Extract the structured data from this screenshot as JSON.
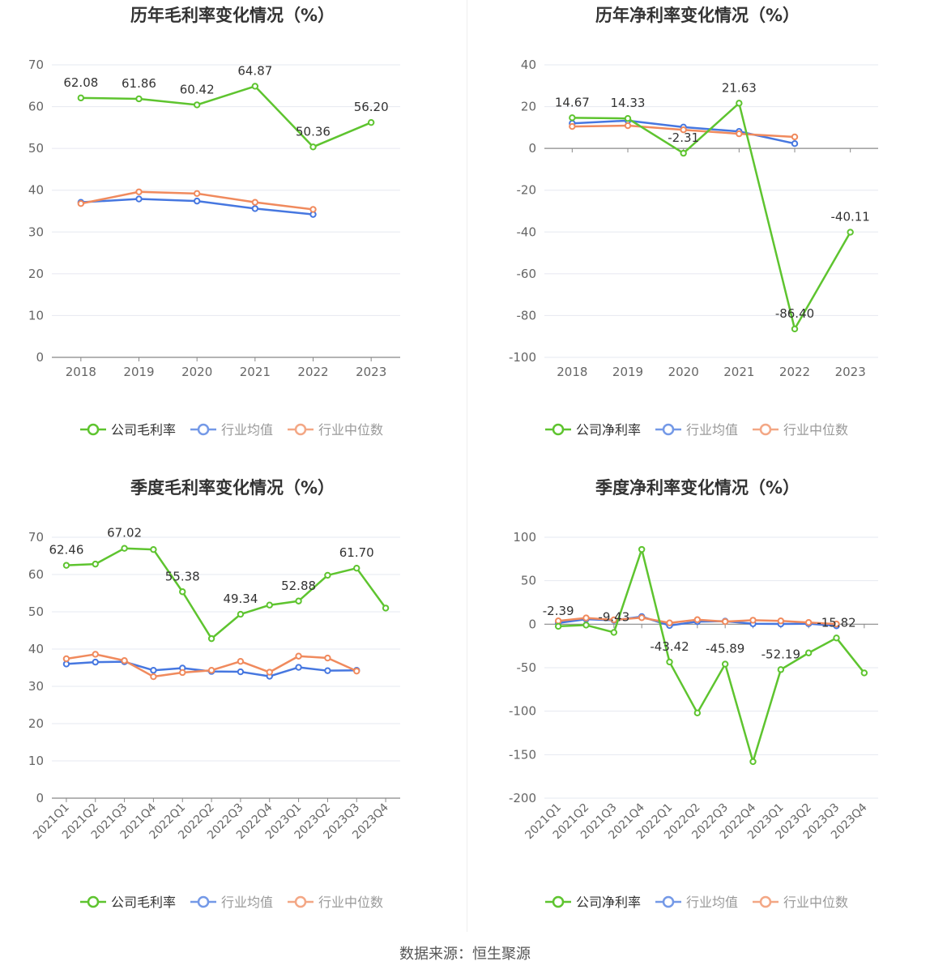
{
  "footer": {
    "source": "数据来源：恒生聚源"
  },
  "colors": {
    "company": "#5ec42f",
    "avg": "#4677e0",
    "median": "#f08a5d",
    "grid": "#e6e8f0",
    "axis": "#888888",
    "text": "#666666",
    "label": "#333333"
  },
  "chart_data": [
    {
      "id": "annual-gross",
      "type": "line",
      "title": "历年毛利率变化情况（%）",
      "categories": [
        "2018",
        "2019",
        "2020",
        "2021",
        "2022",
        "2023"
      ],
      "ylim": [
        0,
        70
      ],
      "yticks": [
        0,
        10,
        20,
        30,
        40,
        50,
        60,
        70
      ],
      "grid": true,
      "legend_position": "bottom",
      "series": [
        {
          "name": "公司毛利率",
          "role": "company",
          "values": [
            62.08,
            61.86,
            60.42,
            64.87,
            50.36,
            56.2
          ],
          "labels": [
            "62.08",
            "61.86",
            "60.42",
            "64.87",
            "50.36",
            "56.20"
          ]
        },
        {
          "name": "行业均值",
          "role": "avg",
          "values": [
            37.1,
            37.9,
            37.4,
            35.6,
            34.2,
            null
          ]
        },
        {
          "name": "行业中位数",
          "role": "median",
          "values": [
            36.8,
            39.6,
            39.2,
            37.1,
            35.4,
            null
          ]
        }
      ]
    },
    {
      "id": "annual-net",
      "type": "line",
      "title": "历年净利率变化情况（%）",
      "categories": [
        "2018",
        "2019",
        "2020",
        "2021",
        "2022",
        "2023"
      ],
      "ylim": [
        -100,
        40
      ],
      "yticks": [
        -100,
        -80,
        -60,
        -40,
        -20,
        0,
        20,
        40
      ],
      "grid": true,
      "legend_position": "bottom",
      "series": [
        {
          "name": "公司净利率",
          "role": "company",
          "values": [
            14.67,
            14.33,
            -2.31,
            21.63,
            -86.4,
            -40.11
          ],
          "labels": [
            "14.67",
            "14.33",
            "-2.31",
            "21.63",
            "-86.40",
            "-40.11"
          ]
        },
        {
          "name": "行业均值",
          "role": "avg",
          "values": [
            12.0,
            13.3,
            10.2,
            8.1,
            2.3,
            null
          ]
        },
        {
          "name": "行业中位数",
          "role": "median",
          "values": [
            10.5,
            10.9,
            8.9,
            7.0,
            5.5,
            null
          ]
        }
      ]
    },
    {
      "id": "quarterly-gross",
      "type": "line",
      "title": "季度毛利率变化情况（%）",
      "categories": [
        "2021Q1",
        "2021Q2",
        "2021Q3",
        "2021Q4",
        "2022Q1",
        "2022Q2",
        "2022Q3",
        "2022Q4",
        "2023Q1",
        "2023Q2",
        "2023Q3",
        "2023Q4"
      ],
      "ylim": [
        0,
        70
      ],
      "yticks": [
        0,
        10,
        20,
        30,
        40,
        50,
        60,
        70
      ],
      "grid": true,
      "legend_position": "bottom",
      "series": [
        {
          "name": "公司毛利率",
          "role": "company",
          "values": [
            62.46,
            62.8,
            67.02,
            66.7,
            55.38,
            42.8,
            49.34,
            51.8,
            52.88,
            59.8,
            61.7,
            51.0
          ],
          "labels": [
            "62.46",
            "",
            "67.02",
            "",
            "55.38",
            "",
            "49.34",
            "",
            "52.88",
            "",
            "61.70",
            ""
          ]
        },
        {
          "name": "行业均值",
          "role": "avg",
          "values": [
            36.0,
            36.5,
            36.6,
            34.3,
            34.9,
            34.0,
            33.9,
            32.7,
            35.1,
            34.2,
            34.3,
            null
          ]
        },
        {
          "name": "行业中位数",
          "role": "median",
          "values": [
            37.4,
            38.6,
            36.9,
            32.6,
            33.7,
            34.3,
            36.7,
            33.8,
            38.1,
            37.6,
            34.1,
            null
          ]
        }
      ]
    },
    {
      "id": "quarterly-net",
      "type": "line",
      "title": "季度净利率变化情况（%）",
      "categories": [
        "2021Q1",
        "2021Q2",
        "2021Q3",
        "2021Q4",
        "2022Q1",
        "2022Q2",
        "2022Q3",
        "2022Q4",
        "2023Q1",
        "2023Q2",
        "2023Q3",
        "2023Q4"
      ],
      "ylim": [
        -200,
        100
      ],
      "yticks": [
        -200,
        -150,
        -100,
        -50,
        0,
        50,
        100
      ],
      "grid": true,
      "legend_position": "bottom",
      "series": [
        {
          "name": "公司净利率",
          "role": "company",
          "values": [
            -2.39,
            -1.0,
            -9.43,
            86.0,
            -43.42,
            -102.0,
            -45.89,
            -158.0,
            -52.19,
            -33.0,
            -15.82,
            -56.0
          ],
          "labels": [
            "-2.39",
            "",
            "-9.43",
            "",
            "-43.42",
            "",
            "-45.89",
            "",
            "-52.19",
            "",
            "-15.82",
            ""
          ]
        },
        {
          "name": "行业均值",
          "role": "avg",
          "values": [
            1.5,
            5.8,
            4.5,
            8.7,
            -1.5,
            3.0,
            3.5,
            0.5,
            0.3,
            0.6,
            -1.8,
            null
          ]
        },
        {
          "name": "行业中位数",
          "role": "median",
          "values": [
            3.8,
            7.2,
            5.0,
            7.5,
            1.5,
            5.2,
            3.0,
            4.6,
            3.8,
            2.0,
            0.2,
            null
          ]
        }
      ]
    }
  ]
}
